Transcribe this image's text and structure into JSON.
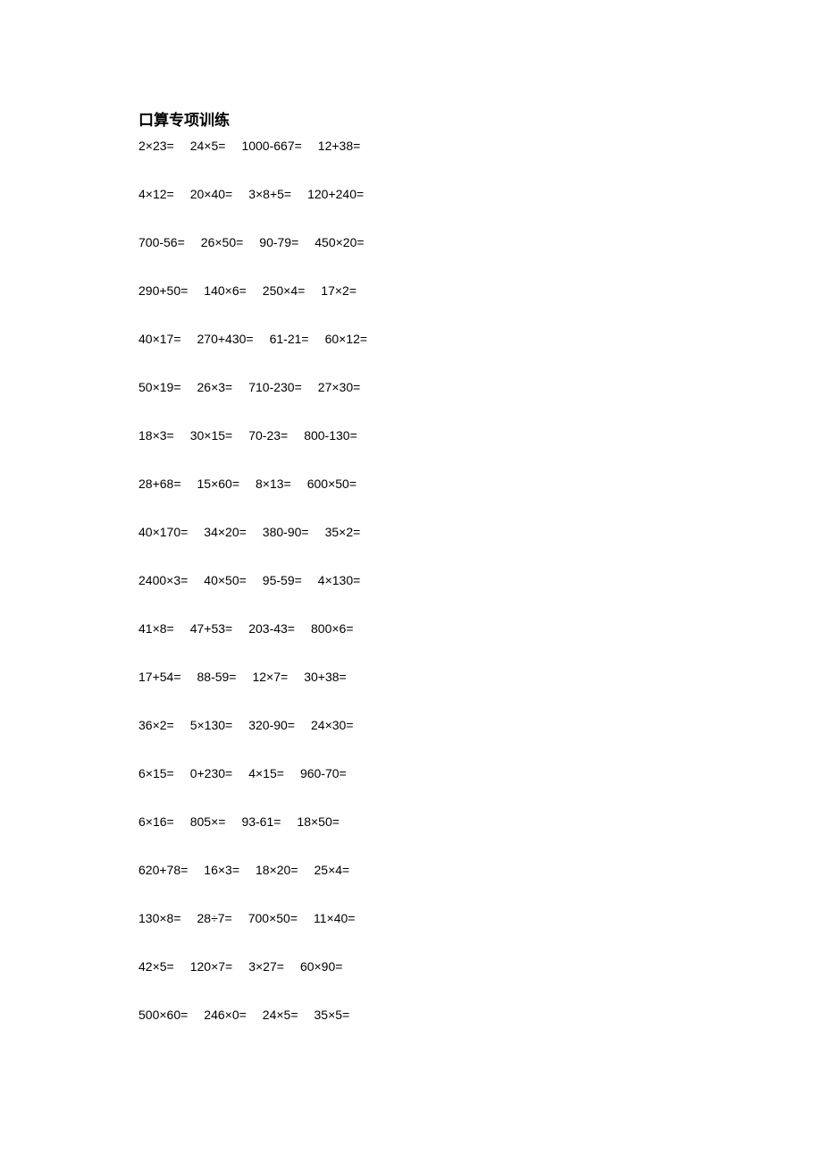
{
  "document": {
    "title": "口算专项训练",
    "background_color": "#ffffff",
    "text_color": "#000000",
    "title_fontsize": 17,
    "body_fontsize": 14,
    "rows": [
      [
        "2×23=",
        "24×5=",
        "1000-667=",
        "12+38="
      ],
      [
        "4×12=",
        "20×40=",
        "3×8+5=",
        "120+240="
      ],
      [
        "700-56=",
        "26×50=",
        "90-79=",
        "450×20="
      ],
      [
        "290+50=",
        "140×6=",
        "250×4=",
        "17×2="
      ],
      [
        "40×17=",
        "270+430=",
        "61-21=",
        "60×12="
      ],
      [
        "50×19=",
        "26×3=",
        "710-230=",
        "27×30="
      ],
      [
        "18×3=",
        "30×15=",
        "70-23=",
        "800-130="
      ],
      [
        "28+68=",
        "15×60=",
        "8×13=",
        "600×50="
      ],
      [
        "40×170=",
        "34×20=",
        "380-90=",
        "35×2="
      ],
      [
        "2400×3=",
        "40×50=",
        "95-59=",
        "4×130="
      ],
      [
        "41×8=",
        "47+53=",
        "203-43=",
        "800×6="
      ],
      [
        "17+54=",
        "88-59=",
        "12×7=",
        "30+38="
      ],
      [
        "36×2=",
        "5×130=",
        "320-90=",
        "24×30="
      ],
      [
        "6×15=",
        "0+230=",
        "4×15=",
        "960-70="
      ],
      [
        "6×16=",
        "805×=",
        "93-61=",
        "18×50="
      ],
      [
        "620+78=",
        "16×3=",
        "18×20=",
        "25×4="
      ],
      [
        "130×8=",
        "28÷7=",
        "700×50=",
        "11×40="
      ],
      [
        "42×5=",
        "120×7=",
        "3×27=",
        "60×90="
      ],
      [
        "500×60=",
        "246×0=",
        "24×5=",
        "35×5="
      ]
    ]
  }
}
